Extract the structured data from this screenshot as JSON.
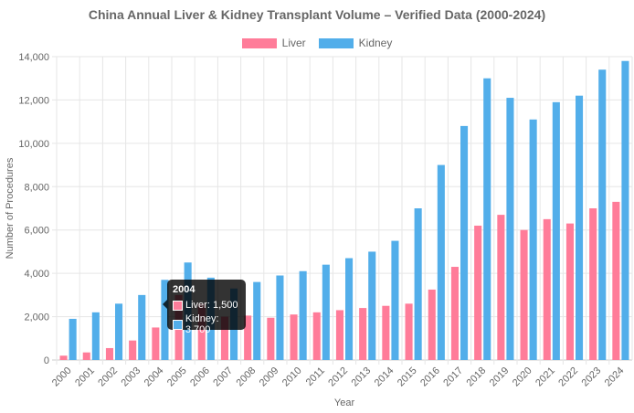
{
  "chart_data": {
    "type": "bar",
    "title": "China Annual Liver & Kidney Transplant Volume – Verified Data (2000-2024)",
    "xlabel": "Year",
    "ylabel": "Number of Procedures",
    "ylim": [
      0,
      14000
    ],
    "yticks": [
      "0",
      "2,000",
      "4,000",
      "6,000",
      "8,000",
      "10,000",
      "12,000",
      "14,000"
    ],
    "grid": true,
    "legend_position": "top",
    "categories": [
      "2000",
      "2001",
      "2002",
      "2003",
      "2004",
      "2005",
      "2006",
      "2007",
      "2008",
      "2009",
      "2010",
      "2011",
      "2012",
      "2013",
      "2014",
      "2015",
      "2016",
      "2017",
      "2018",
      "2019",
      "2020",
      "2021",
      "2022",
      "2023",
      "2024"
    ],
    "series": [
      {
        "name": "Liver",
        "color": "#ff7c99",
        "values": [
          200,
          350,
          550,
          900,
          1500,
          3000,
          2600,
          2000,
          2050,
          1950,
          2100,
          2200,
          2300,
          2400,
          2500,
          2600,
          3250,
          4300,
          6200,
          6700,
          6000,
          6500,
          6300,
          7000,
          7300
        ]
      },
      {
        "name": "Kidney",
        "color": "#52aeea",
        "values": [
          1900,
          2200,
          2600,
          3000,
          3700,
          4500,
          3800,
          3300,
          3600,
          3900,
          4100,
          4400,
          4700,
          5000,
          5500,
          7000,
          9000,
          10800,
          13000,
          12100,
          11100,
          11900,
          12200,
          13400,
          13800
        ]
      }
    ],
    "tooltip": {
      "title": "2004",
      "lines": [
        "Liver: 1,500",
        "Kidney: 3,700"
      ]
    }
  }
}
